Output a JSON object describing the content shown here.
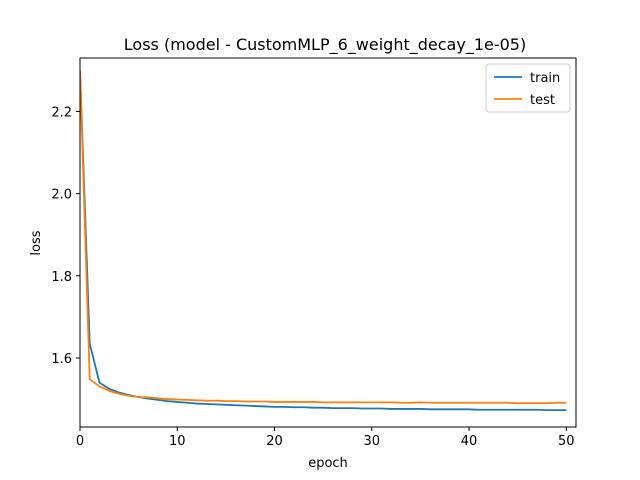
{
  "chart_data": {
    "type": "line",
    "title": "Loss (model - CustomMLP_6_weight_decay_1e-05)",
    "xlabel": "epoch",
    "ylabel": "loss",
    "xlim": [
      0,
      51
    ],
    "ylim": [
      1.432,
      2.33
    ],
    "xticks": [
      0,
      10,
      20,
      30,
      40,
      50
    ],
    "yticks": [
      1.6,
      1.8,
      2.0,
      2.2
    ],
    "grid": false,
    "legend_position": "top-right",
    "series": [
      {
        "name": "train",
        "color": "#1f77b4",
        "x": [
          0,
          1,
          2,
          3,
          4,
          5,
          6,
          7,
          8,
          9,
          10,
          11,
          12,
          13,
          14,
          15,
          16,
          17,
          18,
          19,
          20,
          21,
          22,
          23,
          24,
          25,
          26,
          27,
          28,
          29,
          30,
          31,
          32,
          33,
          34,
          35,
          36,
          37,
          38,
          39,
          40,
          41,
          42,
          43,
          44,
          45,
          46,
          47,
          48,
          49,
          50
        ],
        "values": [
          2.3,
          1.635,
          1.54,
          1.525,
          1.516,
          1.51,
          1.505,
          1.501,
          1.498,
          1.495,
          1.493,
          1.491,
          1.489,
          1.488,
          1.487,
          1.486,
          1.485,
          1.484,
          1.483,
          1.482,
          1.481,
          1.481,
          1.48,
          1.48,
          1.479,
          1.479,
          1.478,
          1.478,
          1.478,
          1.477,
          1.477,
          1.477,
          1.476,
          1.476,
          1.476,
          1.476,
          1.475,
          1.475,
          1.475,
          1.475,
          1.475,
          1.474,
          1.474,
          1.474,
          1.474,
          1.474,
          1.474,
          1.474,
          1.473,
          1.473,
          1.473
        ]
      },
      {
        "name": "test",
        "color": "#ff7f0e",
        "x": [
          0,
          1,
          2,
          3,
          4,
          5,
          6,
          7,
          8,
          9,
          10,
          11,
          12,
          13,
          14,
          15,
          16,
          17,
          18,
          19,
          20,
          21,
          22,
          23,
          24,
          25,
          26,
          27,
          28,
          29,
          30,
          31,
          32,
          33,
          34,
          35,
          36,
          37,
          38,
          39,
          40,
          41,
          42,
          43,
          44,
          45,
          46,
          47,
          48,
          49,
          50
        ],
        "values": [
          2.3,
          1.548,
          1.531,
          1.52,
          1.513,
          1.508,
          1.505,
          1.504,
          1.502,
          1.5,
          1.499,
          1.498,
          1.497,
          1.496,
          1.496,
          1.495,
          1.495,
          1.494,
          1.494,
          1.494,
          1.493,
          1.493,
          1.493,
          1.493,
          1.493,
          1.492,
          1.492,
          1.492,
          1.492,
          1.492,
          1.492,
          1.492,
          1.492,
          1.491,
          1.491,
          1.492,
          1.491,
          1.491,
          1.491,
          1.491,
          1.491,
          1.491,
          1.491,
          1.491,
          1.491,
          1.49,
          1.49,
          1.49,
          1.49,
          1.491,
          1.491
        ]
      }
    ]
  }
}
